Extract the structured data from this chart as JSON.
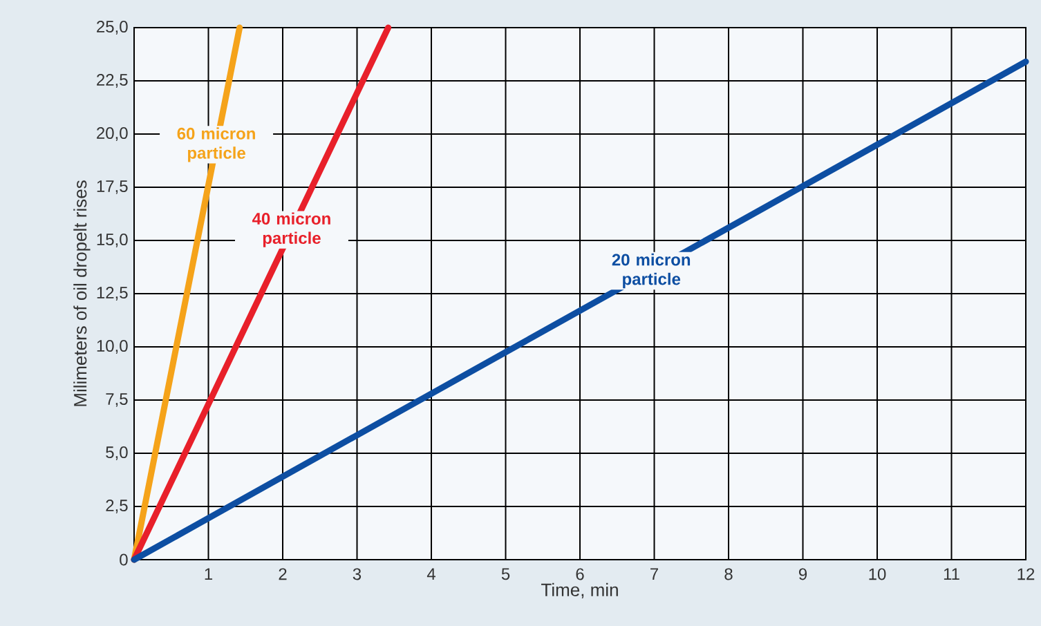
{
  "chart_data": {
    "type": "line",
    "xlabel": "Time, min",
    "ylabel": "Milimeters of oil dropelt rises",
    "xlim": [
      0,
      12
    ],
    "ylim": [
      0,
      25
    ],
    "xticks": [
      {
        "value": 0,
        "label": null
      },
      1,
      2,
      3,
      4,
      5,
      6,
      7,
      8,
      9,
      10,
      11,
      12
    ],
    "yticks": [
      0,
      {
        "value": 2.5,
        "label": "2,5"
      },
      {
        "value": 5,
        "label": "5,0"
      },
      {
        "value": 7.5,
        "label": "7,5"
      },
      {
        "value": 10,
        "label": "10,0"
      },
      {
        "value": 12.5,
        "label": "12,5"
      },
      {
        "value": 15,
        "label": "15,0"
      },
      {
        "value": 17.5,
        "label": "17,5"
      },
      {
        "value": 20,
        "label": "20,0"
      },
      {
        "value": 22.5,
        "label": "22,5"
      },
      {
        "value": 25,
        "label": "25,0"
      }
    ],
    "grid": true,
    "legend": false,
    "marker": "none",
    "line_style": "solid",
    "series": [
      {
        "name": "60 micron particle",
        "color": "#f5a31a",
        "x": [
          0,
          1.42
        ],
        "values": [
          0,
          25
        ]
      },
      {
        "name": "40 micron particle",
        "color": "#e8202a",
        "x": [
          0,
          3.42
        ],
        "values": [
          0,
          25
        ]
      },
      {
        "name": "20 micron particle",
        "color": "#0d4ea2",
        "x": [
          0,
          12
        ],
        "values": [
          0,
          23.4
        ]
      }
    ]
  }
}
